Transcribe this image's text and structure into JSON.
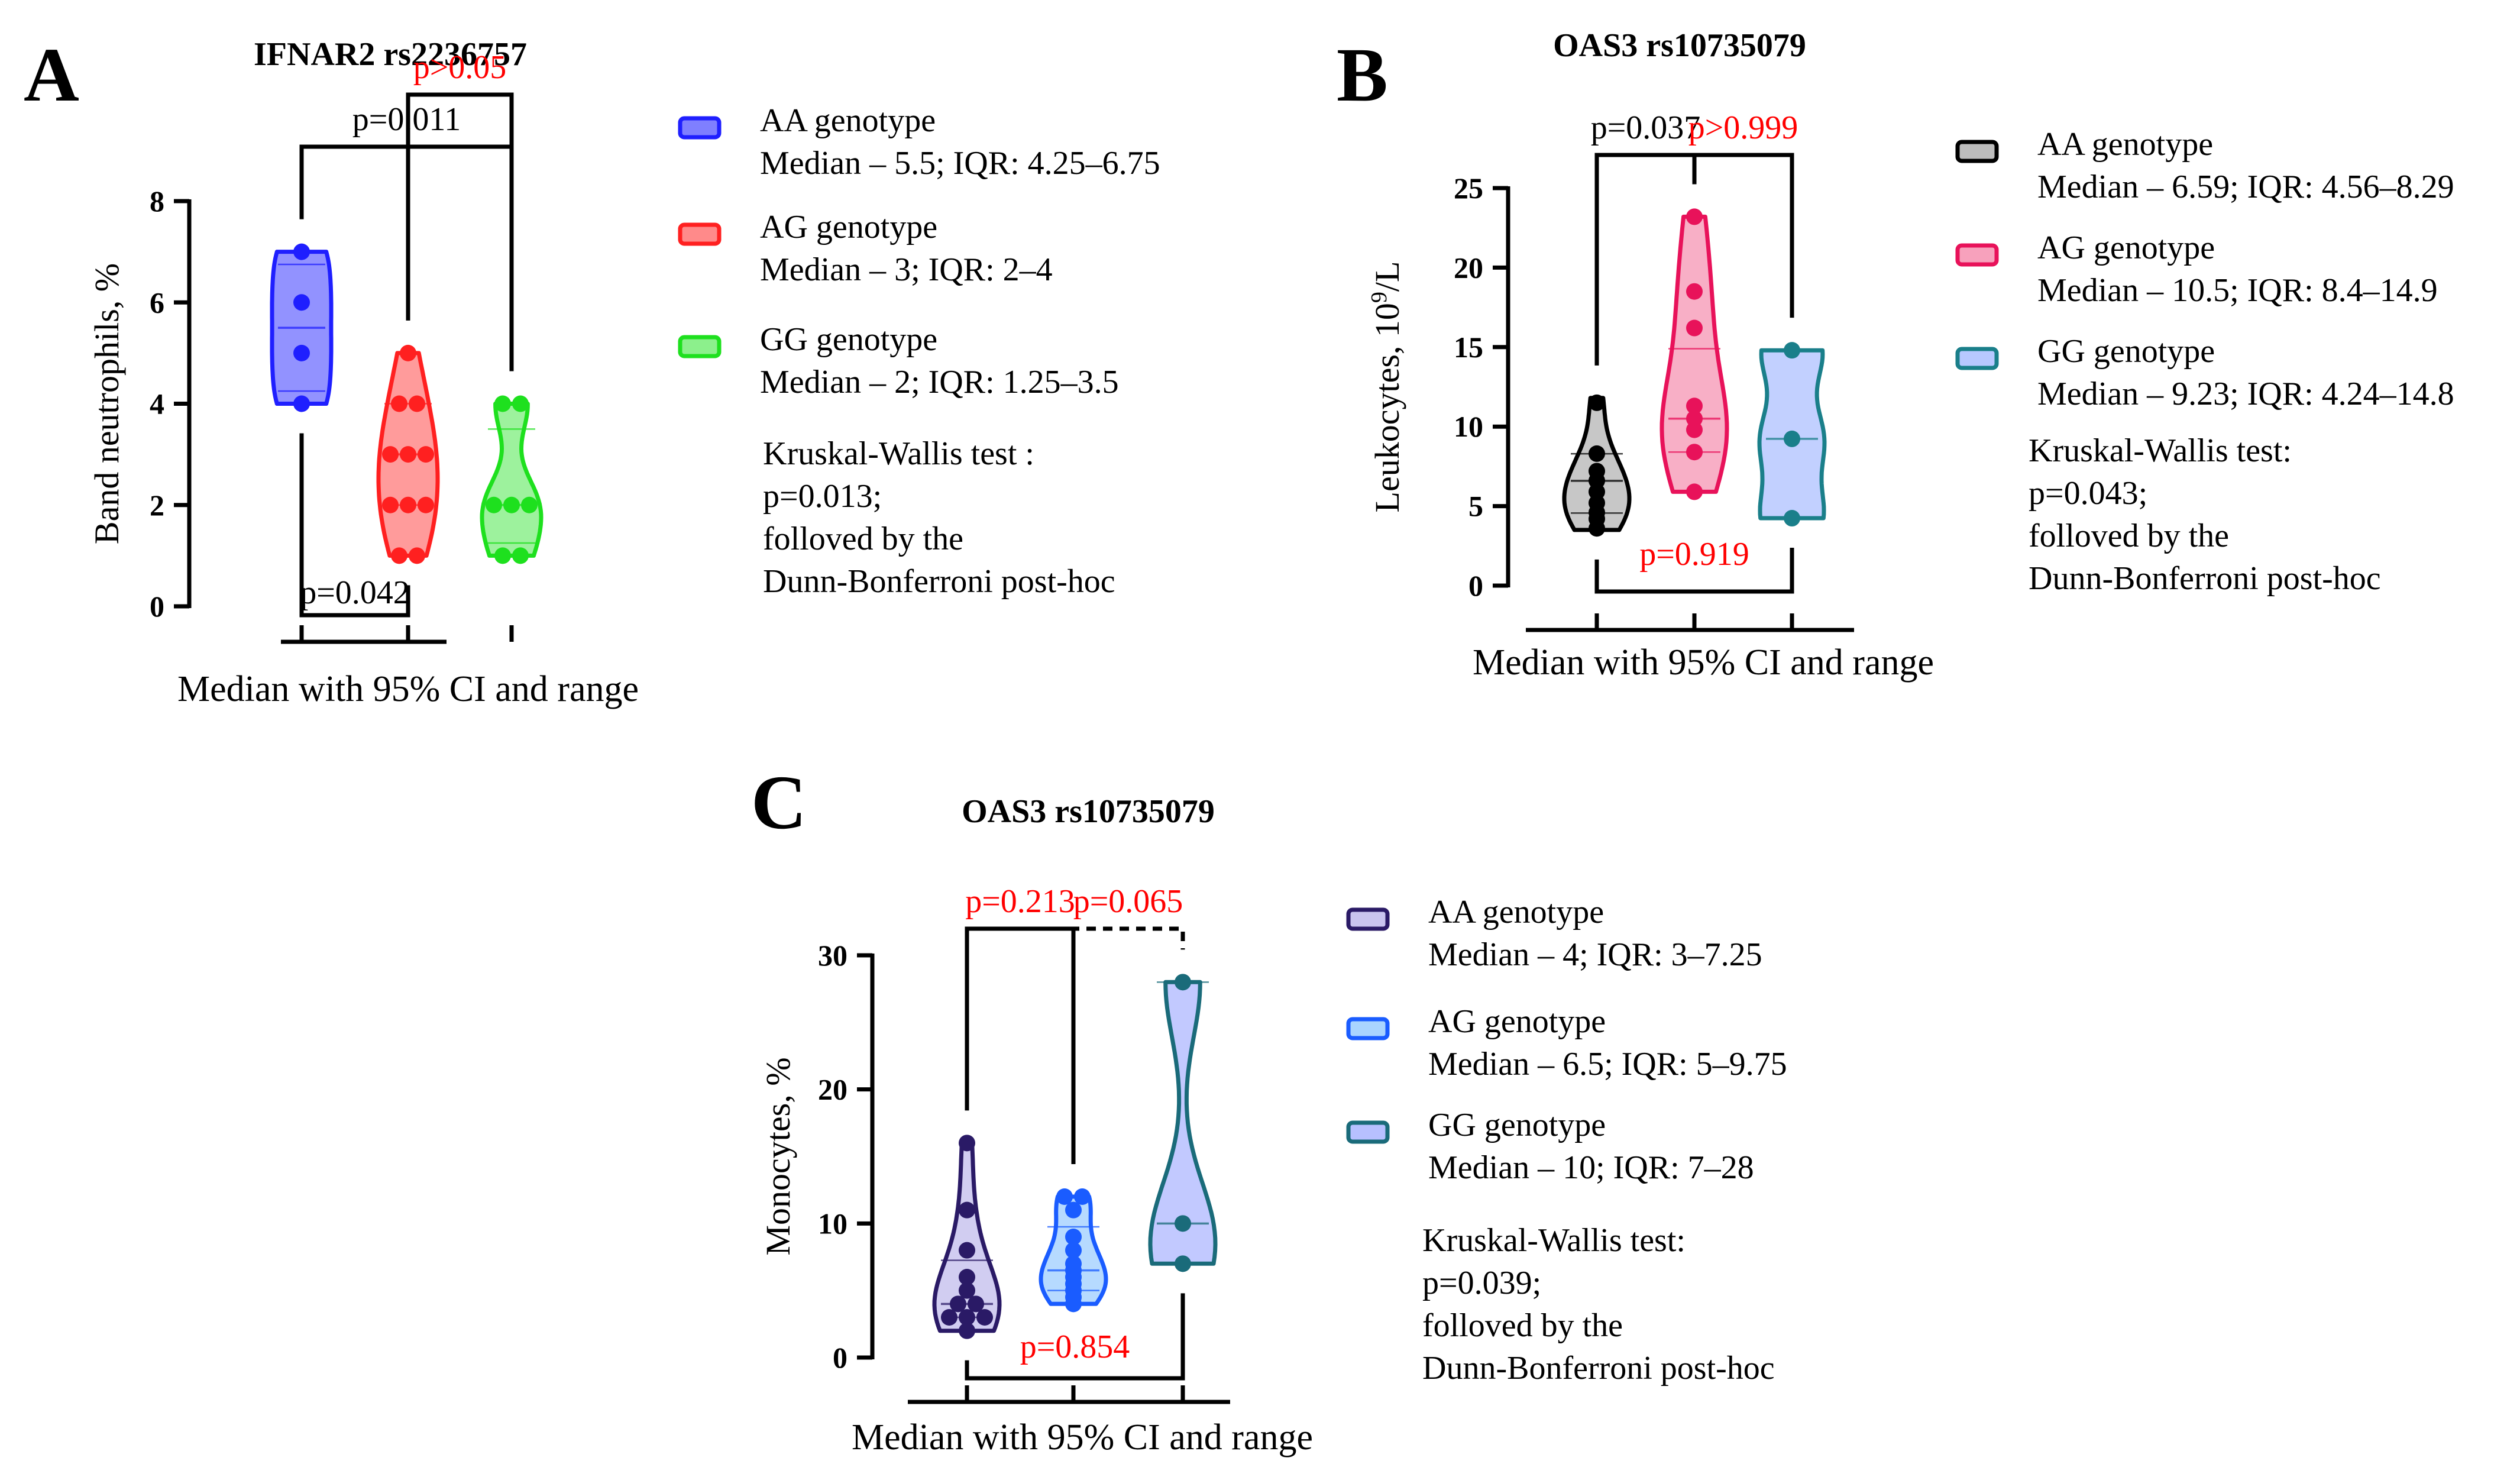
{
  "chart_data": [
    {
      "type": "violin",
      "panel_letter": "A",
      "title": "IFNAR2 rs2236757",
      "xlabel": "Median with 95% CI and range",
      "ylabel": "Band neutrophils, %",
      "ylim": [
        0,
        8
      ],
      "yticks": [
        0,
        2,
        4,
        6,
        8
      ],
      "series": [
        {
          "name": "AA genotype",
          "stats": "Median – 5.5; IQR: 4.25–6.75",
          "color": "#1f1fff",
          "fill": "#7f7fff",
          "median": 5.5,
          "q1": 4.25,
          "q3": 6.75,
          "min": 4,
          "max": 7,
          "points": [
            4,
            5,
            6,
            7
          ]
        },
        {
          "name": "AG genotype",
          "stats": "Median – 3; IQR: 2–4",
          "color": "#ff2020",
          "fill": "#ff8a8a",
          "median": 3,
          "q1": 2,
          "q3": 4,
          "min": 1,
          "max": 5,
          "points": [
            1,
            1,
            2,
            2,
            2,
            3,
            3,
            3,
            4,
            4,
            5
          ]
        },
        {
          "name": "GG genotype",
          "stats": "Median – 2; IQR: 1.25–3.5",
          "color": "#1ee01e",
          "fill": "#8cf08c",
          "median": 2,
          "q1": 1.25,
          "q3": 3.5,
          "min": 1,
          "max": 4,
          "points": [
            1,
            1,
            2,
            2,
            2,
            4,
            4
          ]
        }
      ],
      "comparisons": [
        {
          "groups": [
            0,
            2
          ],
          "label": "p=0.011",
          "color": "#000000",
          "side": "top",
          "dashed": false
        },
        {
          "groups": [
            1,
            2
          ],
          "label": "p>0.05",
          "color": "#ff0000",
          "side": "top",
          "dashed": false
        },
        {
          "groups": [
            0,
            1
          ],
          "label": "p=0.042",
          "color": "#000000",
          "side": "bottom",
          "dashed": false
        }
      ],
      "test_note": [
        "Kruskal-Wallis test :",
        "p=0.013;",
        "folloved by the",
        "Dunn-Bonferroni post-hoc"
      ]
    },
    {
      "type": "violin",
      "panel_letter": "B",
      "title": "OAS3 rs10735079",
      "xlabel": "Median with 95% CI and range",
      "ylabel": "Leukocytes, 10",
      "ylabel_sup": "9",
      "ylabel_tail": "/L",
      "ylim": [
        0,
        25
      ],
      "yticks": [
        0,
        5,
        10,
        15,
        20,
        25
      ],
      "series": [
        {
          "name": "AA genotype",
          "stats": "Median – 6.59; IQR: 4.56–8.29",
          "color": "#000000",
          "fill": "#bdbdbd",
          "median": 6.59,
          "q1": 4.56,
          "q3": 8.29,
          "min": 3.5,
          "max": 11.8,
          "points": [
            3.6,
            4.2,
            4.6,
            5.2,
            5.9,
            6.6,
            7.2,
            8.3,
            11.5
          ]
        },
        {
          "name": "AG genotype",
          "stats": "Median – 10.5; IQR: 8.4–14.9",
          "color": "#e8125a",
          "fill": "#f7a1bc",
          "median": 10.5,
          "q1": 8.4,
          "q3": 14.9,
          "min": 5.9,
          "max": 23.2,
          "points": [
            5.9,
            8.4,
            9.8,
            10.5,
            11.3,
            16.2,
            18.5,
            23.2
          ]
        },
        {
          "name": "GG genotype",
          "stats": "Median – 9.23; IQR: 4.24–14.8",
          "color": "#1a7f8a",
          "fill": "#b7c8ff",
          "median": 9.23,
          "q1": 4.24,
          "q3": 14.8,
          "min": 4.24,
          "max": 14.8,
          "points": [
            4.24,
            9.23,
            14.8
          ]
        }
      ],
      "comparisons": [
        {
          "groups": [
            0,
            1
          ],
          "label": "p=0.037",
          "color": "#000000",
          "side": "top",
          "dashed": false
        },
        {
          "groups": [
            1,
            2
          ],
          "label": "p>0.999",
          "color": "#ff0000",
          "side": "top",
          "dashed": false
        },
        {
          "groups": [
            0,
            2
          ],
          "label": "p=0.919",
          "color": "#ff0000",
          "side": "bottom",
          "dashed": false
        }
      ],
      "test_note": [
        "Kruskal-Wallis test:",
        "p=0.043;",
        "folloved by the",
        "Dunn-Bonferroni post-hoc"
      ]
    },
    {
      "type": "violin",
      "panel_letter": "C",
      "title": "OAS3 rs10735079",
      "xlabel": "Median with 95% CI and range",
      "ylabel": "Monocytes, %",
      "ylim": [
        0,
        30
      ],
      "yticks": [
        0,
        10,
        20,
        30
      ],
      "series": [
        {
          "name": "AA genotype",
          "stats": "Median – 4; IQR: 3–7.25",
          "color": "#2a1a66",
          "fill": "#c9c4ee",
          "median": 4,
          "q1": 3,
          "q3": 7.25,
          "min": 2,
          "max": 16,
          "points": [
            2,
            3,
            3,
            3,
            4,
            4,
            5,
            6,
            8,
            11,
            16
          ]
        },
        {
          "name": "AG genotype",
          "stats": "Median – 6.5; IQR: 5–9.75",
          "color": "#1a5cff",
          "fill": "#a9d4ff",
          "median": 6.5,
          "q1": 5,
          "q3": 9.75,
          "min": 4,
          "max": 12,
          "points": [
            4,
            4.5,
            5,
            5.5,
            6,
            6.5,
            7,
            8,
            9,
            11,
            12,
            12
          ]
        },
        {
          "name": "GG genotype",
          "stats": "Median – 10; IQR: 7–28",
          "color": "#1a6b7a",
          "fill": "#b7c0ff",
          "median": 10,
          "q1": 7,
          "q3": 28,
          "min": 7,
          "max": 28,
          "points": [
            7,
            10,
            28
          ]
        }
      ],
      "comparisons": [
        {
          "groups": [
            0,
            1
          ],
          "label": "p=0.213",
          "color": "#ff0000",
          "side": "top",
          "dashed": false
        },
        {
          "groups": [
            1,
            2
          ],
          "label": "p=0.065",
          "color": "#ff0000",
          "side": "top",
          "dashed": true
        },
        {
          "groups": [
            0,
            2
          ],
          "label": "p=0.854",
          "color": "#ff0000",
          "side": "bottom",
          "dashed": false
        }
      ],
      "test_note": [
        "Kruskal-Wallis test:",
        "p=0.039;",
        "folloved by the",
        "Dunn-Bonferroni post-hoc"
      ]
    }
  ]
}
